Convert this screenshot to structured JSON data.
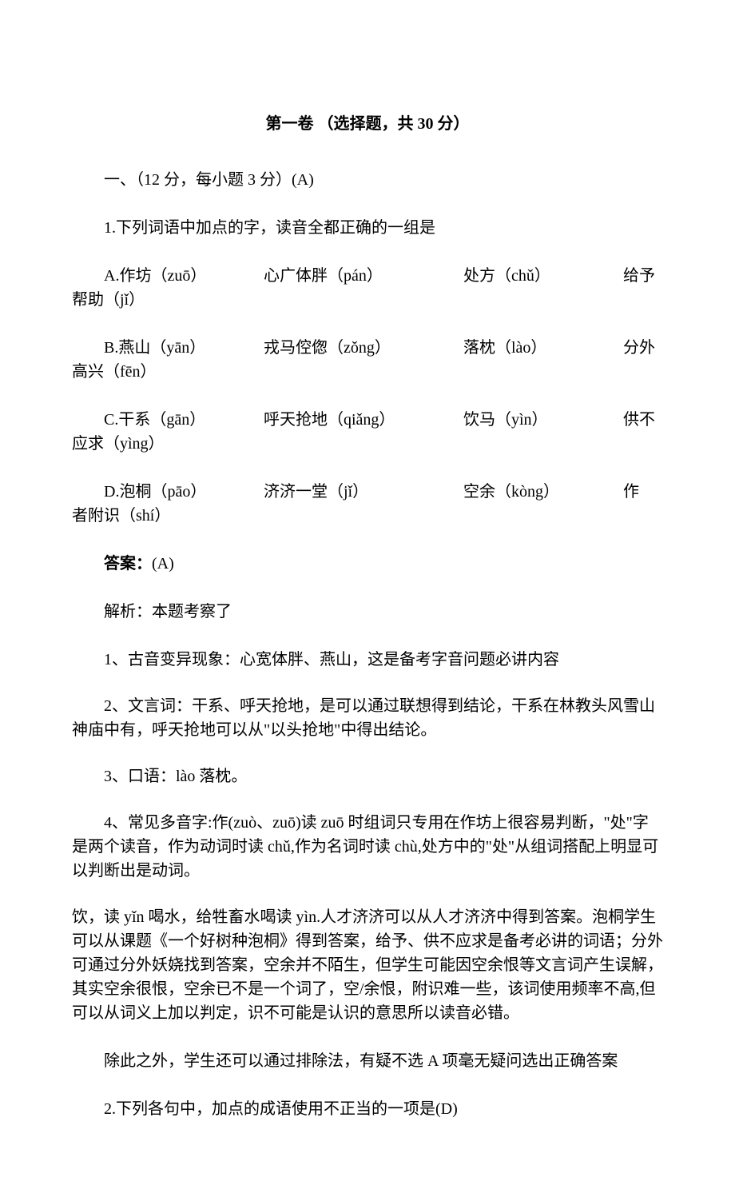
{
  "title": "第一卷 （选择题，共 30 分）",
  "section1_header": "一、（12 分，每小题 3 分）(A)",
  "q1": {
    "stem": "1.下列词语中加点的字，读音全都正确的一组是",
    "optA": {
      "c1": "A.作坊（zuō）",
      "c2": "心广体胖（pán）",
      "c3": "处方（chǔ）",
      "c4": "给予",
      "wrap": "帮助（jǐ）"
    },
    "optB": {
      "c1": "B.燕山（yān）",
      "c2": "戎马倥偬（zǒng）",
      "c3": "落枕（lào）",
      "c4": "分外",
      "wrap": "高兴（fēn）"
    },
    "optC": {
      "c1": "C.干系（gān）",
      "c2": "呼天抢地（qiǎng）",
      "c3": "饮马（yìn）",
      "c4": "供不",
      "wrap": "应求（yìng）"
    },
    "optD": {
      "c1": "D.泡桐（pāo）",
      "c2": "济济一堂（jǐ）",
      "c3": "空余（kòng）",
      "c4": "作",
      "wrap": "者附识（shí）"
    }
  },
  "answer_label": "答案：",
  "answer_value": "(A)",
  "analysis_intro": "解析：本题考察了",
  "analysis_1": "1、古音变异现象：心宽体胖、燕山，这是备考字音问题必讲内容",
  "analysis_2": "2、文言词：干系、呼天抢地，是可以通过联想得到结论，干系在林教头风雪山神庙中有，呼天抢地可以从\"以头抢地\"中得出结论。",
  "analysis_3": "3、口语：lào 落枕。",
  "analysis_4": "4、常见多音字:作(zuò、zuō)读 zuō 时组词只专用在作坊上很容易判断，\"处\"字是两个读音，作为动词时读 chǔ,作为名词时读 chù,处方中的\"处\"从组词搭配上明显可以判断出是动词。",
  "analysis_5": "饮，读 yǐn 喝水，给牲畜水喝读 yìn.人才济济可以从人才济济中得到答案。泡桐学生可以从课题《一个好树种泡桐》得到答案，给予、供不应求是备考必讲的词语；分外可通过分外妖娆找到答案，空余并不陌生，但学生可能因空余恨等文言词产生误解，其实空余很恨，空余已不是一个词了，空/余恨，附识难一些，该词使用频率不高,但可以从词义上加以判定，识不可能是认识的意思所以读音必错。",
  "analysis_6": "除此之外，学生还可以通过排除法，有疑不选 A 项毫无疑问选出正确答案",
  "q2_stem": "2.下列各句中，加点的成语使用不正当的一项是(D)"
}
